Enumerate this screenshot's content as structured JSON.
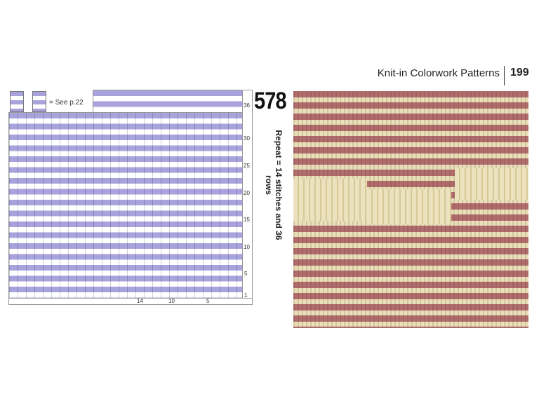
{
  "header": {
    "section": "Knit-in Colorwork Patterns",
    "page_number": "199"
  },
  "pattern": {
    "number": "578",
    "repeat": "Repeat = 14 stitches and 36 rows"
  },
  "legend": {
    "note": "= See p.22"
  },
  "chart": {
    "row_labels": [
      "36",
      "30",
      "25",
      "20",
      "15",
      "10",
      "5",
      "1"
    ],
    "column_labels": [
      "14",
      "10",
      "5"
    ]
  }
}
